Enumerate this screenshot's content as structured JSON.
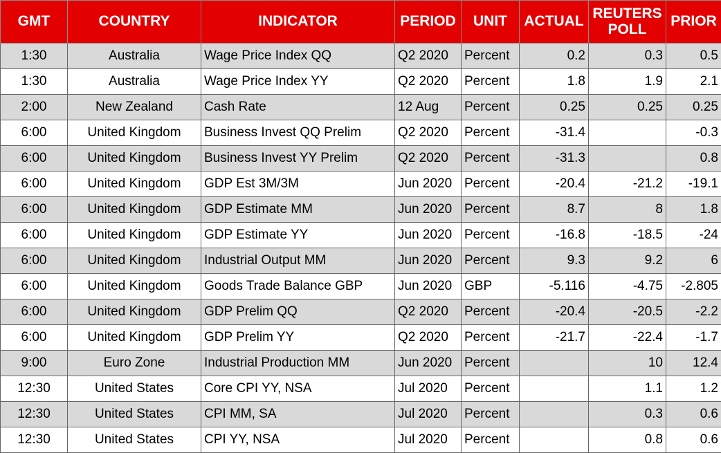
{
  "table": {
    "headers": [
      "GMT",
      "COUNTRY",
      "INDICATOR",
      "PERIOD",
      "UNIT",
      "ACTUAL",
      "REUTERS POLL",
      "PRIOR"
    ],
    "rows": [
      [
        "1:30",
        "Australia",
        "Wage Price Index QQ",
        "Q2 2020",
        "Percent",
        "0.2",
        "0.3",
        "0.5"
      ],
      [
        "1:30",
        "Australia",
        "Wage Price Index YY",
        "Q2 2020",
        "Percent",
        "1.8",
        "1.9",
        "2.1"
      ],
      [
        "2:00",
        "New Zealand",
        "Cash Rate",
        "12 Aug",
        "Percent",
        "0.25",
        "0.25",
        "0.25"
      ],
      [
        "6:00",
        "United Kingdom",
        "Business Invest QQ Prelim",
        "Q2 2020",
        "Percent",
        "-31.4",
        null,
        "-0.3"
      ],
      [
        "6:00",
        "United Kingdom",
        "Business Invest YY Prelim",
        "Q2 2020",
        "Percent",
        "-31.3",
        null,
        "0.8"
      ],
      [
        "6:00",
        "United Kingdom",
        "GDP Est 3M/3M",
        "Jun 2020",
        "Percent",
        "-20.4",
        "-21.2",
        "-19.1"
      ],
      [
        "6:00",
        "United Kingdom",
        "GDP Estimate MM",
        "Jun 2020",
        "Percent",
        "8.7",
        "8",
        "1.8"
      ],
      [
        "6:00",
        "United Kingdom",
        "GDP Estimate YY",
        "Jun 2020",
        "Percent",
        "-16.8",
        "-18.5",
        "-24"
      ],
      [
        "6:00",
        "United Kingdom",
        "Industrial Output MM",
        "Jun 2020",
        "Percent",
        "9.3",
        "9.2",
        "6"
      ],
      [
        "6:00",
        "United Kingdom",
        "Goods Trade Balance GBP",
        "Jun 2020",
        "GBP",
        "-5.116",
        "-4.75",
        "-2.805"
      ],
      [
        "6:00",
        "United Kingdom",
        "GDP Prelim QQ",
        "Q2 2020",
        "Percent",
        "-20.4",
        "-20.5",
        "-2.2"
      ],
      [
        "6:00",
        "United Kingdom",
        "GDP Prelim YY",
        "Q2 2020",
        "Percent",
        "-21.7",
        "-22.4",
        "-1.7"
      ],
      [
        "9:00",
        "Euro Zone",
        "Industrial Production MM",
        "Jun 2020",
        "Percent",
        null,
        "10",
        "12.4"
      ],
      [
        "12:30",
        "United States",
        "Core CPI YY, NSA",
        "Jul 2020",
        "Percent",
        null,
        "1.1",
        "1.2"
      ],
      [
        "12:30",
        "United States",
        "CPI MM, SA",
        "Jul 2020",
        "Percent",
        null,
        "0.3",
        "0.6"
      ],
      [
        "12:30",
        "United States",
        "CPI YY, NSA",
        "Jul 2020",
        "Percent",
        null,
        "0.8",
        "0.6"
      ]
    ]
  }
}
